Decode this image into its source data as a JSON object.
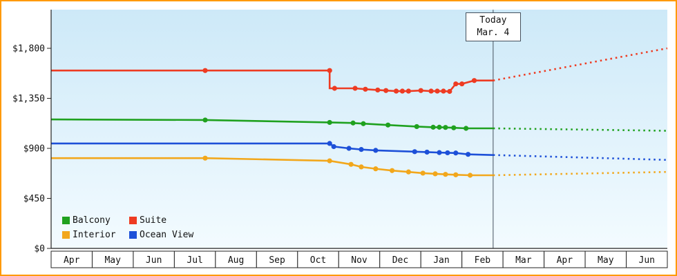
{
  "frame": {
    "border_color": "#ff9900"
  },
  "plot": {
    "gradient_top": "#cde9f8",
    "gradient_bottom": "#f3fbff",
    "axis_color": "#222222",
    "today_line_color": "#44505c"
  },
  "y_axis": {
    "ticks": [
      {
        "label": "$0",
        "value": 0
      },
      {
        "label": "$450",
        "value": 450
      },
      {
        "label": "$900",
        "value": 900
      },
      {
        "label": "$1,350",
        "value": 1350
      },
      {
        "label": "$1,800",
        "value": 1800
      }
    ]
  },
  "chart_data": {
    "type": "line",
    "title": "",
    "ylim": [
      0,
      1800
    ],
    "x_unit": "months (Apr through following Jun), index 0 = Apr",
    "months": [
      "Apr",
      "May",
      "Jun",
      "Jul",
      "Aug",
      "Sep",
      "Oct",
      "Nov",
      "Dec",
      "Jan",
      "Feb",
      "Mar",
      "Apr",
      "May",
      "Jun"
    ],
    "today": {
      "line1": "Today",
      "line2": "Mar. 4",
      "month_fraction": 10.76
    },
    "legend_position": "bottom-left-inside",
    "series": [
      {
        "name": "Balcony",
        "color": "#1fa11f",
        "solid": [
          [
            0,
            1160,
            0
          ],
          [
            3.75,
            1155,
            1
          ],
          [
            6.78,
            1133,
            1
          ],
          [
            7.35,
            1128,
            1
          ],
          [
            7.6,
            1122,
            1
          ],
          [
            8.2,
            1110,
            1
          ],
          [
            8.9,
            1096,
            1
          ],
          [
            9.3,
            1090,
            1
          ],
          [
            9.45,
            1090,
            1
          ],
          [
            9.6,
            1088,
            1
          ],
          [
            9.8,
            1085,
            1
          ],
          [
            10.1,
            1080,
            1
          ],
          [
            10.76,
            1080,
            0
          ]
        ],
        "projection": [
          [
            10.76,
            1080
          ],
          [
            15,
            1058
          ]
        ]
      },
      {
        "name": "Suite",
        "color": "#ee3b22",
        "solid": [
          [
            0,
            1600,
            0
          ],
          [
            3.75,
            1600,
            1
          ],
          [
            6.78,
            1600,
            1
          ],
          [
            6.78,
            1440,
            0
          ],
          [
            6.9,
            1440,
            1
          ],
          [
            7.4,
            1440,
            1
          ],
          [
            7.65,
            1432,
            1
          ],
          [
            7.95,
            1425,
            1
          ],
          [
            8.15,
            1420,
            1
          ],
          [
            8.4,
            1415,
            1
          ],
          [
            8.55,
            1415,
            1
          ],
          [
            8.7,
            1415,
            1
          ],
          [
            9.0,
            1420,
            1
          ],
          [
            9.25,
            1415,
            1
          ],
          [
            9.4,
            1415,
            1
          ],
          [
            9.55,
            1415,
            1
          ],
          [
            9.7,
            1412,
            1
          ],
          [
            9.85,
            1480,
            1
          ],
          [
            10.0,
            1480,
            1
          ],
          [
            10.3,
            1510,
            1
          ],
          [
            10.76,
            1510,
            0
          ]
        ],
        "projection": [
          [
            10.76,
            1510
          ],
          [
            15,
            1800
          ]
        ]
      },
      {
        "name": "Interior",
        "color": "#f2a71b",
        "solid": [
          [
            0,
            812,
            0
          ],
          [
            3.75,
            812,
            1
          ],
          [
            6.78,
            788,
            1
          ],
          [
            7.3,
            756,
            1
          ],
          [
            7.55,
            733,
            1
          ],
          [
            7.9,
            716,
            1
          ],
          [
            8.3,
            700,
            1
          ],
          [
            8.7,
            688,
            1
          ],
          [
            9.05,
            677,
            1
          ],
          [
            9.35,
            671,
            1
          ],
          [
            9.6,
            666,
            1
          ],
          [
            9.85,
            662,
            1
          ],
          [
            10.2,
            658,
            1
          ],
          [
            10.76,
            658,
            0
          ]
        ],
        "projection": [
          [
            10.76,
            658
          ],
          [
            15,
            688
          ]
        ]
      },
      {
        "name": "Ocean View",
        "color": "#1d50d8",
        "solid": [
          [
            0,
            944,
            0
          ],
          [
            6.78,
            944,
            1
          ],
          [
            6.88,
            916,
            1
          ],
          [
            7.25,
            900,
            1
          ],
          [
            7.55,
            890,
            1
          ],
          [
            7.9,
            882,
            1
          ],
          [
            8.85,
            870,
            1
          ],
          [
            9.15,
            866,
            1
          ],
          [
            9.45,
            862,
            1
          ],
          [
            9.65,
            860,
            1
          ],
          [
            9.85,
            858,
            1
          ],
          [
            10.15,
            846,
            1
          ],
          [
            10.76,
            840,
            0
          ]
        ],
        "projection": [
          [
            10.76,
            840
          ],
          [
            15,
            796
          ]
        ]
      }
    ],
    "legend_row_order": [
      [
        "Balcony",
        "Suite"
      ],
      [
        "Interior",
        "Ocean View"
      ]
    ]
  }
}
